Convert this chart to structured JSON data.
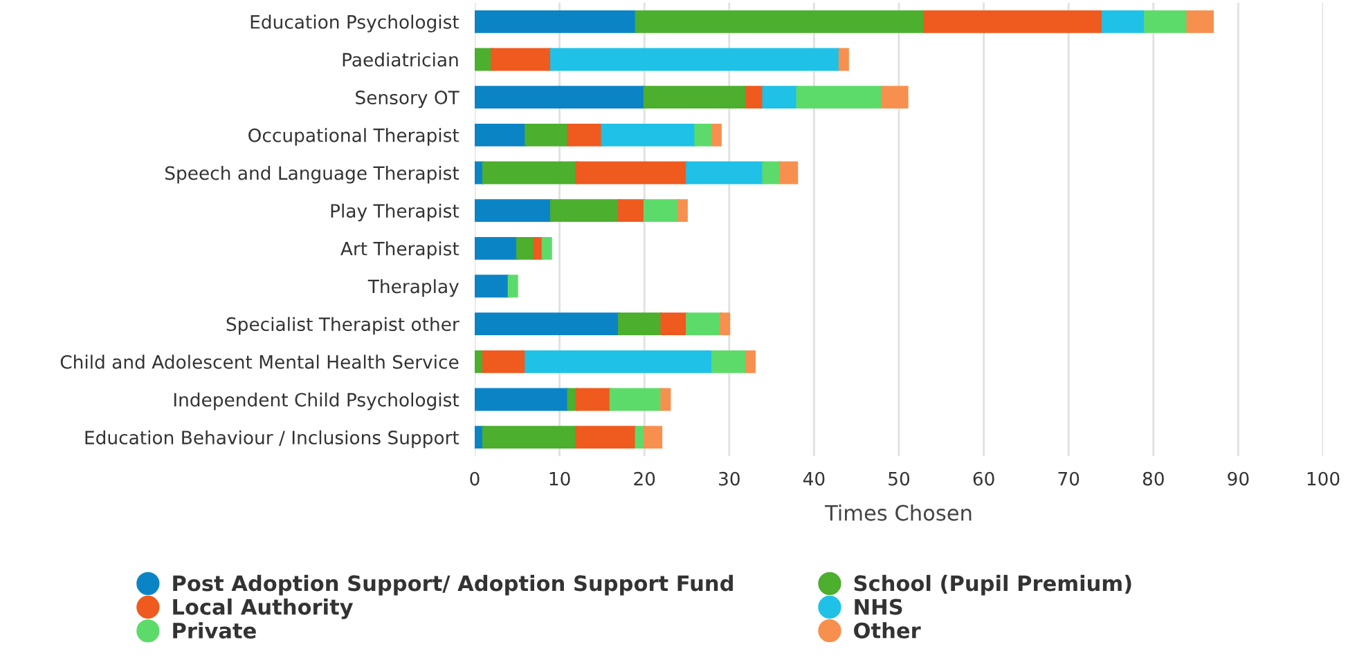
{
  "chart_data": {
    "type": "bar",
    "orientation": "horizontal",
    "stacked": true,
    "xlabel": "Times Chosen",
    "categories": [
      "Education Psychologist",
      "Paediatrician",
      "Sensory OT",
      "Occupational Therapist",
      "Speech and Language Therapist",
      "Play Therapist",
      "Art Therapist",
      "Theraplay",
      "Specialist Therapist other",
      "Child and Adolescent Mental Health Service",
      "Independent Child Psychologist",
      "Education Behaviour / Inclusions Support"
    ],
    "series": [
      {
        "name": "Post Adoption Support/ Adoption Support Fund",
        "color": "#0b84c6",
        "values": [
          19,
          0,
          20,
          6,
          1,
          9,
          5,
          4,
          17,
          0,
          11,
          1
        ]
      },
      {
        "name": "School (Pupil Premium)",
        "color": "#4caf2e",
        "values": [
          34,
          2,
          12,
          5,
          11,
          8,
          2,
          0,
          5,
          1,
          1,
          11
        ]
      },
      {
        "name": "Local Authority",
        "color": "#ef5a1f",
        "values": [
          21,
          7,
          2,
          4,
          13,
          3,
          1,
          0,
          3,
          5,
          4,
          7
        ]
      },
      {
        "name": "NHS",
        "color": "#1fc1e6",
        "values": [
          5,
          34,
          4,
          11,
          9,
          0,
          0,
          0,
          0,
          22,
          0,
          0
        ]
      },
      {
        "name": "Private",
        "color": "#5ddb6a",
        "values": [
          5,
          0,
          10,
          2,
          2,
          4,
          1,
          1,
          4,
          4,
          6,
          1
        ]
      },
      {
        "name": "Other",
        "color": "#f7904f",
        "values": [
          3,
          1,
          3,
          1,
          2,
          1,
          0,
          0,
          1,
          1,
          1,
          2
        ]
      }
    ],
    "xlim": [
      0,
      100
    ],
    "xticks": [
      0,
      10,
      20,
      30,
      40,
      50,
      60,
      70,
      80,
      90,
      100
    ],
    "grid": "x",
    "legend": "bottom"
  }
}
